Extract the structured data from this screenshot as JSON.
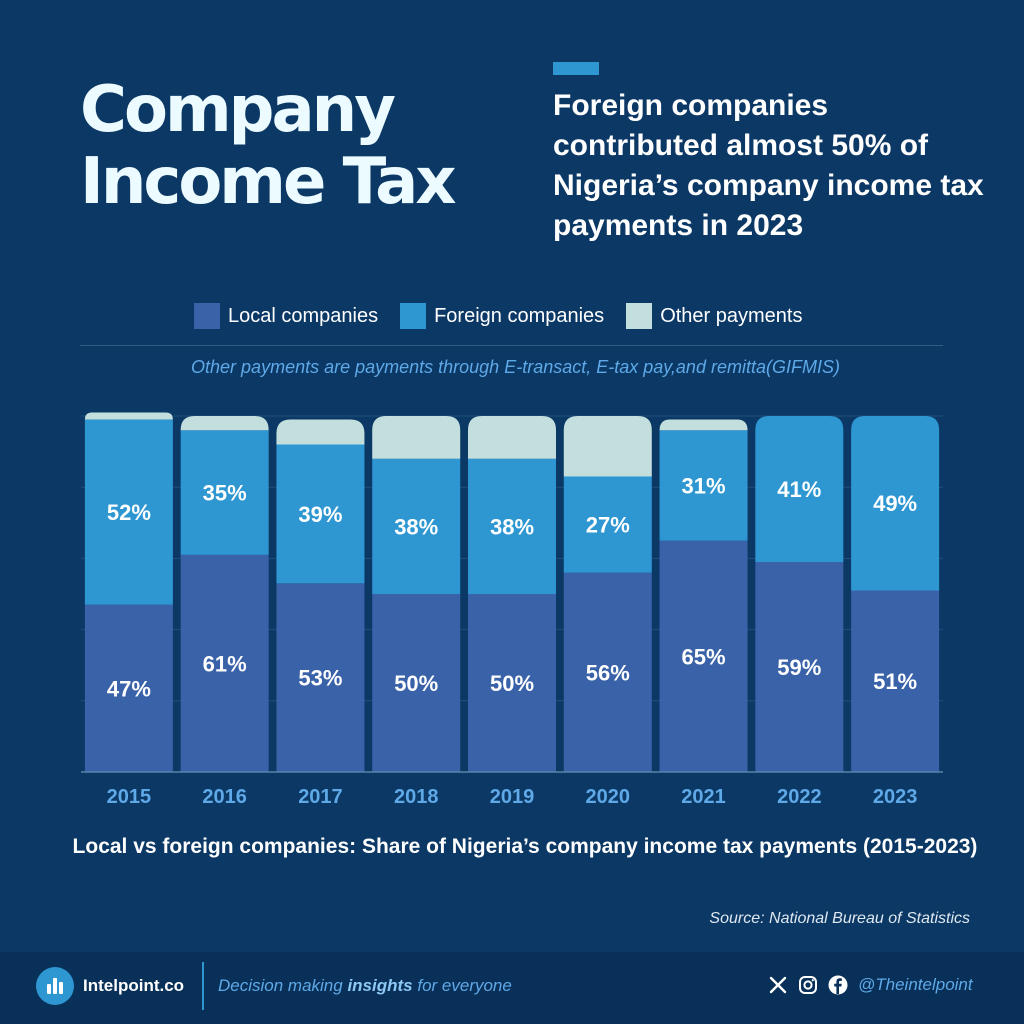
{
  "header": {
    "title_line1": "Company",
    "title_line2": "Income Tax",
    "subtitle": "Foreign companies contributed almost 50% of Nigeria’s company income tax payments in 2023"
  },
  "note": "Other payments are payments through E-transact, E-tax pay,and remitta(GIFMIS)",
  "chart_data": {
    "type": "bar",
    "stacked": true,
    "categories": [
      "2015",
      "2016",
      "2017",
      "2018",
      "2019",
      "2020",
      "2021",
      "2022",
      "2023"
    ],
    "series": [
      {
        "name": "Local companies",
        "color": "#3a62a8",
        "values": [
          47,
          61,
          53,
          50,
          50,
          56,
          65,
          59,
          51
        ]
      },
      {
        "name": "Foreign companies",
        "color": "#2e97d2",
        "values": [
          52,
          35,
          39,
          38,
          38,
          27,
          31,
          41,
          49
        ]
      },
      {
        "name": "Other payments",
        "color": "#c2dfdd",
        "values": [
          2,
          4,
          7,
          12,
          12,
          17,
          3,
          0,
          0
        ]
      }
    ],
    "data_labels": {
      "local": [
        "47%",
        "61%",
        "53%",
        "50%",
        "50%",
        "56%",
        "65%",
        "59%",
        "51%"
      ],
      "foreign": [
        "52%",
        "35%",
        "39%",
        "38%",
        "38%",
        "27%",
        "31%",
        "41%",
        "49%"
      ]
    },
    "ylim": [
      0,
      100
    ],
    "grid": true,
    "legend": "top"
  },
  "caption": "Local vs foreign companies: Share of Nigeria’s company income tax payments (2015-2023)",
  "source": "Source: National Bureau of Statistics",
  "footer": {
    "brand": "Intelpoint.co",
    "tagline_pre": "Decision making ",
    "tagline_bold": "insights",
    "tagline_post": " for everyone",
    "handle": "@Theintelpoint"
  },
  "icons": [
    "intelpoint-logo-icon",
    "x-icon",
    "instagram-icon",
    "facebook-icon"
  ]
}
